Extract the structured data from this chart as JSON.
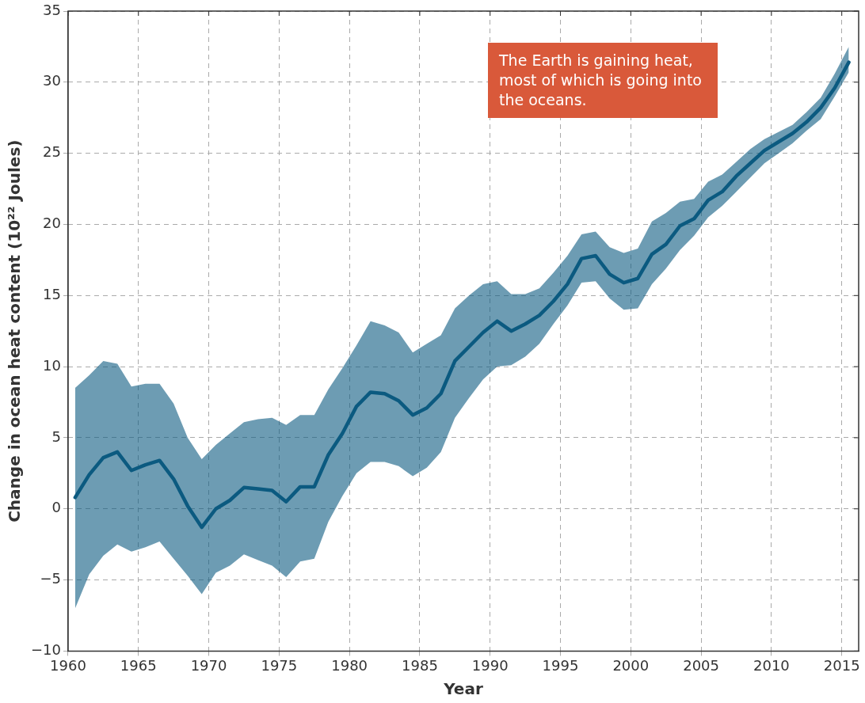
{
  "chart_data": {
    "type": "line",
    "xlabel": "Year",
    "ylabel": "Change in ocean heat content (10²² Joules)",
    "annotations": [
      "The Earth is gaining heat, most of which is going into the oceans."
    ],
    "x": [
      1960.5,
      1961.5,
      1962.5,
      1963.5,
      1964.5,
      1965.5,
      1966.5,
      1967.5,
      1968.5,
      1969.5,
      1970.5,
      1971.5,
      1972.5,
      1973.5,
      1974.5,
      1975.5,
      1976.5,
      1977.5,
      1978.5,
      1979.5,
      1980.5,
      1981.5,
      1982.5,
      1983.5,
      1984.5,
      1985.5,
      1986.5,
      1987.5,
      1988.5,
      1989.5,
      1990.5,
      1991.5,
      1992.5,
      1993.5,
      1994.5,
      1995.5,
      1996.5,
      1997.5,
      1998.5,
      1999.5,
      2000.5,
      2001.5,
      2002.5,
      2003.5,
      2004.5,
      2005.5,
      2006.5,
      2007.5,
      2008.5,
      2009.5,
      2010.5,
      2011.5,
      2012.5,
      2013.5,
      2014.5,
      2015.5
    ],
    "series": [
      {
        "color": "#0c5a80",
        "values": [
          0.8,
          2.4,
          3.6,
          4.0,
          2.7,
          3.1,
          3.4,
          2.1,
          0.2,
          -1.3,
          0.0,
          0.6,
          1.5,
          1.4,
          1.3,
          0.5,
          1.55,
          1.55,
          3.8,
          5.3,
          7.2,
          8.2,
          8.1,
          7.6,
          6.6,
          7.1,
          8.1,
          10.4,
          11.4,
          12.4,
          13.2,
          12.5,
          13.0,
          13.6,
          14.6,
          15.8,
          17.6,
          17.8,
          16.5,
          15.9,
          16.2,
          17.9,
          18.6,
          19.9,
          20.4,
          21.7,
          22.3,
          23.4,
          24.3,
          25.2,
          25.8,
          26.4,
          27.2,
          28.2,
          29.6,
          31.4
        ],
        "lower": [
          -7.0,
          -4.6,
          -3.3,
          -2.5,
          -3.0,
          -2.7,
          -2.3,
          -3.5,
          -4.7,
          -6.0,
          -4.5,
          -4.0,
          -3.2,
          -3.6,
          -4.0,
          -4.8,
          -3.7,
          -3.5,
          -0.9,
          0.9,
          2.5,
          3.3,
          3.3,
          3.0,
          2.3,
          2.9,
          4.0,
          6.4,
          7.8,
          9.1,
          10.0,
          10.1,
          10.7,
          11.6,
          13.0,
          14.3,
          15.9,
          16.0,
          14.8,
          14.0,
          14.1,
          15.8,
          16.9,
          18.2,
          19.2,
          20.5,
          21.3,
          22.3,
          23.3,
          24.3,
          25.0,
          25.7,
          26.6,
          27.4,
          29.0,
          30.7
        ],
        "upper": [
          8.5,
          9.4,
          10.4,
          10.2,
          8.6,
          8.8,
          8.8,
          7.4,
          5.0,
          3.5,
          4.5,
          5.3,
          6.1,
          6.3,
          6.4,
          5.9,
          6.6,
          6.6,
          8.4,
          9.9,
          11.5,
          13.2,
          12.9,
          12.4,
          11.0,
          11.6,
          12.2,
          14.1,
          15.0,
          15.8,
          16.0,
          15.1,
          15.1,
          15.5,
          16.6,
          17.8,
          19.3,
          19.5,
          18.4,
          18.0,
          18.3,
          20.2,
          20.8,
          21.6,
          21.8,
          23.0,
          23.5,
          24.4,
          25.3,
          26.0,
          26.5,
          27.0,
          27.9,
          28.9,
          30.6,
          32.5
        ]
      }
    ],
    "xlim": [
      1960,
      2016.2
    ],
    "xticks": [
      1960,
      1965,
      1970,
      1975,
      1980,
      1985,
      1990,
      1995,
      2000,
      2005,
      2010,
      2015
    ],
    "ylim": [
      -10,
      35
    ],
    "yticks": [
      -10,
      -5,
      0,
      5,
      10,
      15,
      20,
      25,
      30,
      35
    ],
    "grid": true,
    "legend": false,
    "marker": "none",
    "line_style": "solid"
  }
}
